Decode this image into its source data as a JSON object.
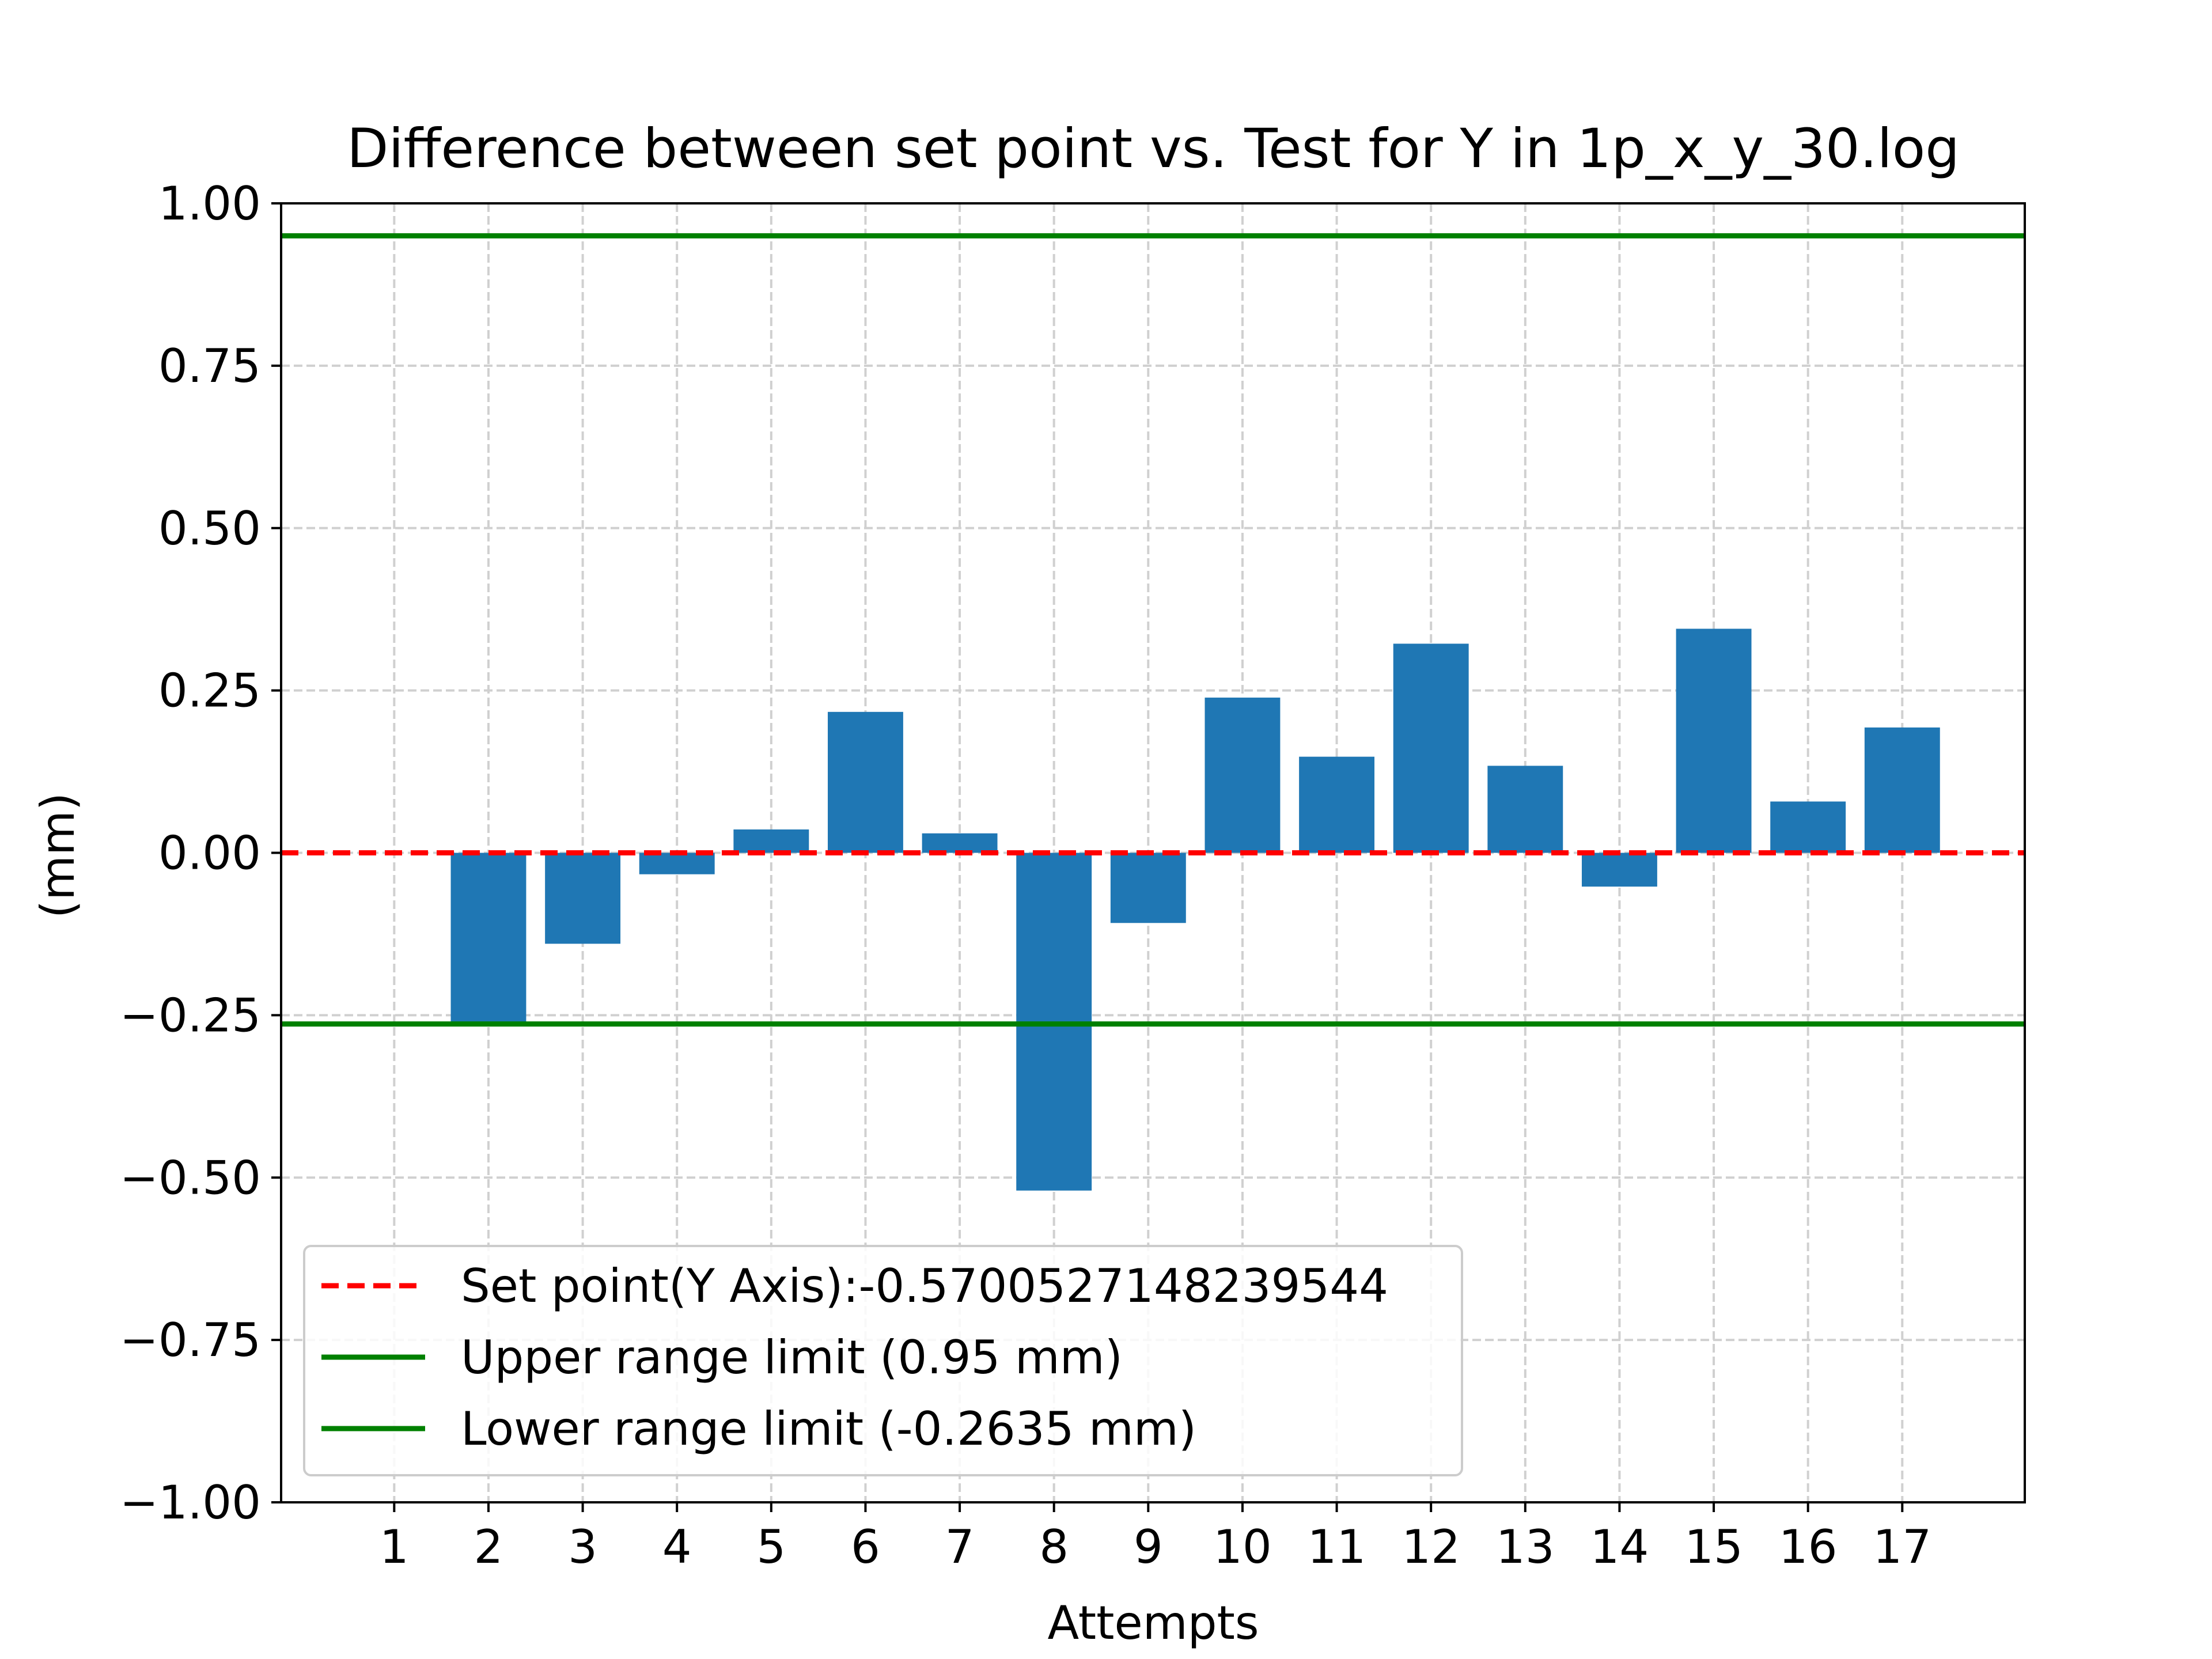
{
  "chart_data": {
    "type": "bar",
    "title": "Difference between set point vs. Test for Y in 1p_x_y_30.log",
    "xlabel": "Attempts",
    "ylabel": "(mm)",
    "categories": [
      "1",
      "2",
      "3",
      "4",
      "5",
      "6",
      "7",
      "8",
      "9",
      "10",
      "11",
      "12",
      "13",
      "14",
      "15",
      "16",
      "17"
    ],
    "series": [
      {
        "values": [
          0.0,
          -0.26,
          -0.14,
          -0.033,
          0.036,
          0.217,
          0.03,
          -0.52,
          -0.108,
          0.239,
          0.148,
          0.322,
          0.134,
          -0.052,
          0.345,
          0.079,
          0.193
        ],
        "color": "#1f77b4"
      }
    ],
    "ylim": [
      -1.0,
      1.0
    ],
    "xlim": [
      -0.2,
      18.3
    ],
    "yticks": [
      1.0,
      0.75,
      0.5,
      0.25,
      0.0,
      -0.25,
      -0.5,
      -0.75,
      -1.0
    ],
    "ytick_labels": [
      "1.00",
      "0.75",
      "0.50",
      "0.25",
      "0.00",
      "−0.25",
      "−0.50",
      "−0.75",
      "−1.00"
    ],
    "grid": true,
    "reference_lines": [
      {
        "label": "Set point(Y Axis):-0.5700527148239544",
        "y": 0.0,
        "color": "#ff0000",
        "style": "dashed"
      },
      {
        "label": "Upper range limit (0.95 mm)",
        "y": 0.95,
        "color": "#008000",
        "style": "solid"
      },
      {
        "label": "Lower range limit (-0.2635 mm)",
        "y": -0.2635,
        "color": "#008000",
        "style": "solid"
      }
    ],
    "legend": {
      "placement": "lower-left",
      "entries": [
        "Set point(Y Axis):-0.5700527148239544",
        "Upper range limit (0.95 mm)",
        "Lower range limit (-0.2635 mm)"
      ]
    }
  }
}
